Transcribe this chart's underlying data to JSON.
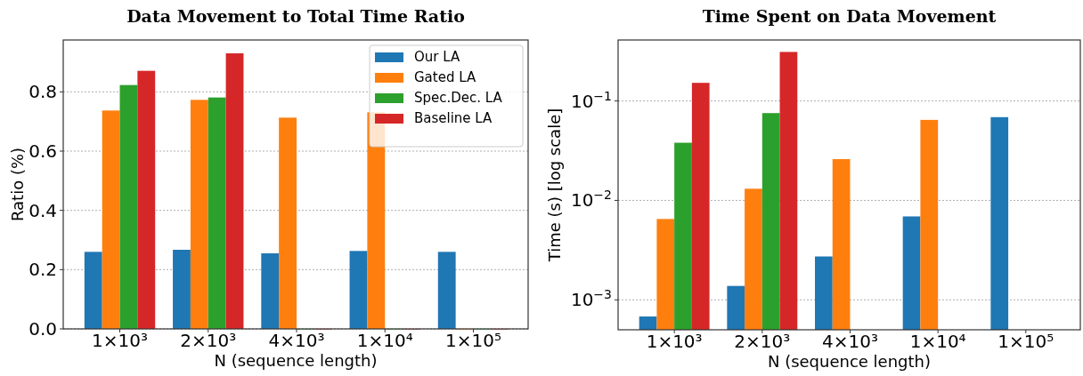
{
  "chart_data": [
    {
      "type": "bar",
      "title": "Data Movement to Total Time Ratio",
      "xlabel": "N (sequence length)",
      "ylabel": "Ratio (%)",
      "categories": [
        "1×10³",
        "2×10³",
        "4×10³",
        "1×10⁴",
        "1×10⁵"
      ],
      "series": [
        {
          "name": "Our LA",
          "color": "#1f77b4",
          "values": [
            0.26,
            0.267,
            0.255,
            0.263,
            0.26
          ]
        },
        {
          "name": "Gated LA",
          "color": "#ff7f0e",
          "values": [
            0.737,
            0.773,
            0.713,
            0.731,
            0
          ]
        },
        {
          "name": "Spec.Dec. LA",
          "color": "#2ca02c",
          "values": [
            0.823,
            0.781,
            0,
            0,
            0
          ]
        },
        {
          "name": "Baseline LA",
          "color": "#d62728",
          "values": [
            0.871,
            0.93,
            0,
            0,
            0
          ]
        }
      ],
      "ylim": [
        0,
        0.975
      ],
      "yticks": [
        {
          "value": 0,
          "label": "0.0"
        },
        {
          "value": 0.2,
          "label": "0.2"
        },
        {
          "value": 0.4,
          "label": "0.4"
        },
        {
          "value": 0.6,
          "label": "0.6"
        },
        {
          "value": 0.8,
          "label": "0.8"
        }
      ],
      "grid": "y",
      "legend": "top right"
    },
    {
      "type": "bar",
      "title": "Time Spent on Data Movement",
      "xlabel": "N (sequence length)",
      "ylabel": "Time (s) [log scale]",
      "categories": [
        "1×10³",
        "2×10³",
        "4×10³",
        "1×10⁴",
        "1×10⁵"
      ],
      "series": [
        {
          "color": "#1f77b4",
          "values": [
            0.00068,
            0.00138,
            0.00273,
            0.0069,
            0.0687
          ]
        },
        {
          "color": "#ff7f0e",
          "values": [
            0.0065,
            0.0131,
            0.026,
            0.0645,
            null
          ]
        },
        {
          "color": "#2ca02c",
          "values": [
            0.038,
            0.0755,
            null,
            null,
            null
          ]
        },
        {
          "color": "#d62728",
          "values": [
            0.152,
            0.311,
            null,
            null,
            null
          ]
        }
      ],
      "ylim": [
        0.0005,
        0.41
      ],
      "log": "y",
      "yticks": [
        {
          "value": 0.001,
          "label": "10$^{−3}$"
        },
        {
          "value": 0.01,
          "label": "10$^{−2}$"
        },
        {
          "value": 0.1,
          "label": "10$^{−1}$"
        }
      ],
      "grid": "y"
    }
  ]
}
